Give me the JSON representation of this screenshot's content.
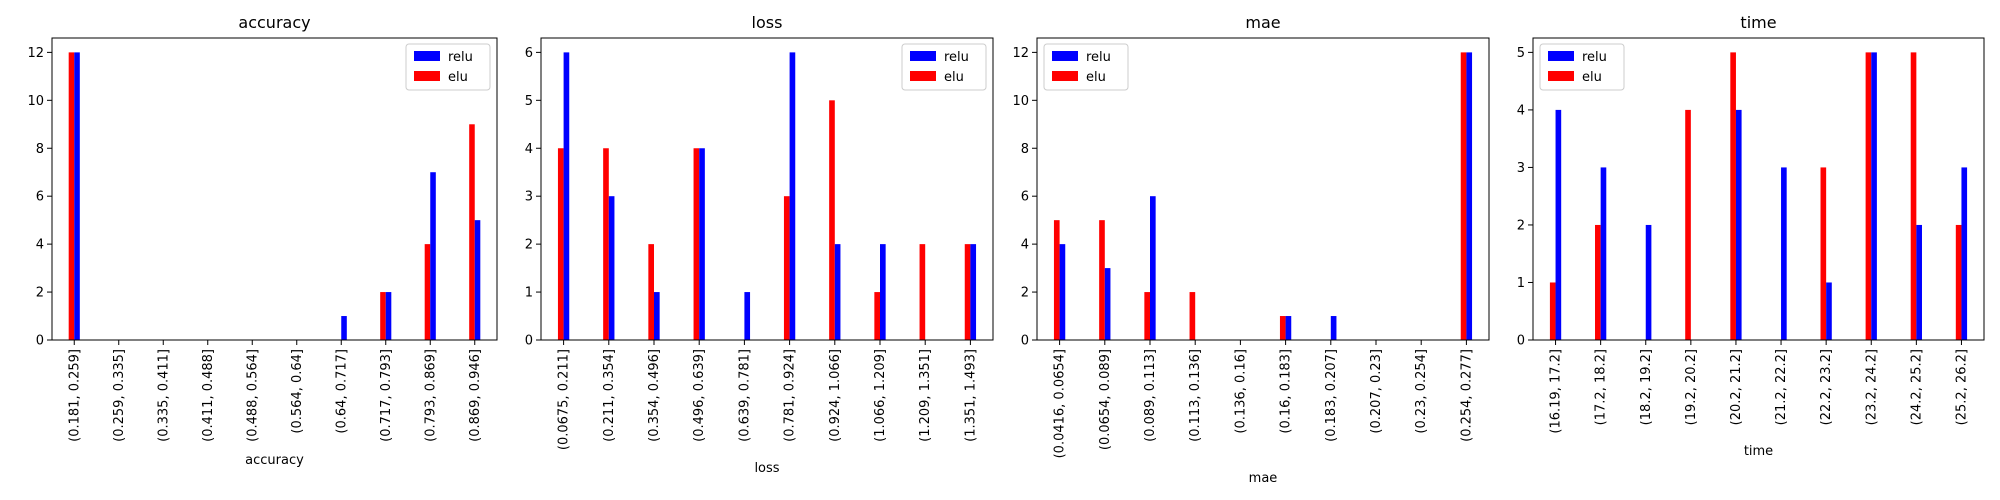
{
  "chart_data": [
    {
      "type": "bar",
      "title": "accuracy",
      "xlabel": "accuracy",
      "ylabel": "",
      "ylim": [
        0,
        12.6
      ],
      "yticks": [
        0,
        2,
        4,
        6,
        8,
        10,
        12
      ],
      "legend_position": "top-right",
      "categories": [
        "(0.181, 0.259]",
        "(0.259, 0.335]",
        "(0.335, 0.411]",
        "(0.411, 0.488]",
        "(0.488, 0.564]",
        "(0.564, 0.64]",
        "(0.64, 0.717]",
        "(0.717, 0.793]",
        "(0.793, 0.869]",
        "(0.869, 0.946]"
      ],
      "series": [
        {
          "name": "relu",
          "color": "#0000ff",
          "values": [
            12,
            0,
            0,
            0,
            0,
            0,
            1,
            2,
            7,
            5
          ]
        },
        {
          "name": "elu",
          "color": "#ff0000",
          "values": [
            12,
            0,
            0,
            0,
            0,
            0,
            0,
            2,
            4,
            9
          ]
        }
      ]
    },
    {
      "type": "bar",
      "title": "loss",
      "xlabel": "loss",
      "ylabel": "",
      "ylim": [
        0,
        6.3
      ],
      "yticks": [
        0,
        1,
        2,
        3,
        4,
        5,
        6
      ],
      "legend_position": "top-right",
      "categories": [
        "(0.0675, 0.211]",
        "(0.211, 0.354]",
        "(0.354, 0.496]",
        "(0.496, 0.639]",
        "(0.639, 0.781]",
        "(0.781, 0.924]",
        "(0.924, 1.066]",
        "(1.066, 1.209]",
        "(1.209, 1.351]",
        "(1.351, 1.493]"
      ],
      "series": [
        {
          "name": "relu",
          "color": "#0000ff",
          "values": [
            6,
            3,
            1,
            4,
            1,
            6,
            2,
            2,
            0,
            2
          ]
        },
        {
          "name": "elu",
          "color": "#ff0000",
          "values": [
            4,
            4,
            2,
            4,
            0,
            3,
            5,
            1,
            2,
            2
          ]
        }
      ]
    },
    {
      "type": "bar",
      "title": "mae",
      "xlabel": "mae",
      "ylabel": "",
      "ylim": [
        0,
        12.6
      ],
      "yticks": [
        0,
        2,
        4,
        6,
        8,
        10,
        12
      ],
      "legend_position": "top-left",
      "categories": [
        "(0.0416, 0.0654]",
        "(0.0654, 0.089]",
        "(0.089, 0.113]",
        "(0.113, 0.136]",
        "(0.136, 0.16]",
        "(0.16, 0.183]",
        "(0.183, 0.207]",
        "(0.207, 0.23]",
        "(0.23, 0.254]",
        "(0.254, 0.277]"
      ],
      "series": [
        {
          "name": "relu",
          "color": "#0000ff",
          "values": [
            4,
            3,
            6,
            0,
            0,
            1,
            1,
            0,
            0,
            12
          ]
        },
        {
          "name": "elu",
          "color": "#ff0000",
          "values": [
            5,
            5,
            2,
            2,
            0,
            1,
            0,
            0,
            0,
            12
          ]
        }
      ]
    },
    {
      "type": "bar",
      "title": "time",
      "xlabel": "time",
      "ylabel": "",
      "ylim": [
        0,
        5.25
      ],
      "yticks": [
        0,
        1,
        2,
        3,
        4,
        5
      ],
      "legend_position": "top-left",
      "categories": [
        "(16.19, 17.2]",
        "(17.2, 18.2]",
        "(18.2, 19.2]",
        "(19.2, 20.2]",
        "(20.2, 21.2]",
        "(21.2, 22.2]",
        "(22.2, 23.2]",
        "(23.2, 24.2]",
        "(24.2, 25.2]",
        "(25.2, 26.2]"
      ],
      "series": [
        {
          "name": "relu",
          "color": "#0000ff",
          "values": [
            4,
            3,
            2,
            0,
            4,
            3,
            1,
            5,
            2,
            3
          ]
        },
        {
          "name": "elu",
          "color": "#ff0000",
          "values": [
            1,
            2,
            0,
            4,
            5,
            0,
            3,
            5,
            5,
            2
          ]
        }
      ]
    }
  ]
}
